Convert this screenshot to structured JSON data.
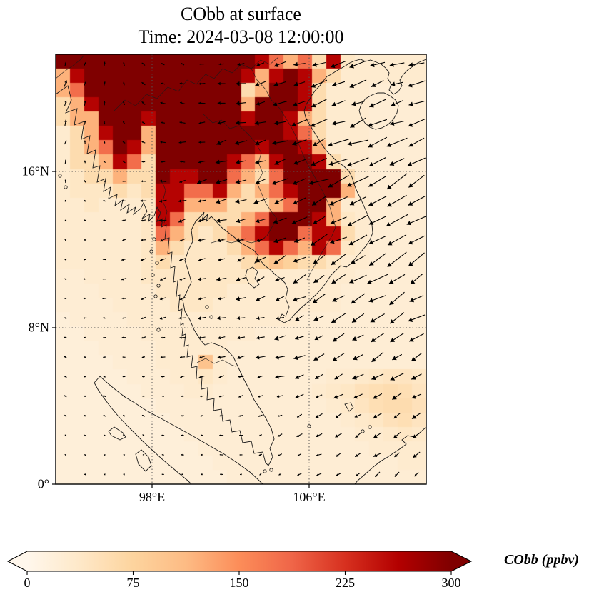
{
  "title": {
    "line1": "CObb at surface",
    "line2": "Time: 2024-03-08 12:00:00"
  },
  "colorbar": {
    "label": "CObb (ppbv)",
    "tick_labels": [
      "0",
      "75",
      "150",
      "225",
      "300"
    ],
    "min": 0,
    "max": 300,
    "extend": "both",
    "colormap_name": "OrRd",
    "colormap_stops": [
      "#fff7ec",
      "#fee8c8",
      "#fdd49e",
      "#fdbb84",
      "#fc8d59",
      "#ef6548",
      "#d7301f",
      "#b30000",
      "#7f0000"
    ]
  },
  "axes": {
    "y_tick_labels": [
      "16°N",
      "8°N",
      "0°"
    ],
    "x_tick_labels": [
      "98°E",
      "106°E"
    ]
  },
  "chart_data": {
    "type": "heatmap",
    "title": "CObb at surface",
    "subtitle": "Time: 2024-03-08 12:00:00",
    "variable": "CObb",
    "units": "ppbv",
    "level": "surface",
    "projection": "lat-lon map, Southeast Asia",
    "lon_range": [
      93.1,
      112.0
    ],
    "lat_range": [
      0.0,
      22.0
    ],
    "x_ticks": [
      {
        "label": "98°E",
        "lon": 98
      },
      {
        "label": "106°E",
        "lon": 106
      }
    ],
    "y_ticks": [
      {
        "label": "16°N",
        "lat": 16
      },
      {
        "label": "8°N",
        "lat": 8
      },
      {
        "label": "0°",
        "lat": 0
      }
    ],
    "grid_on": true,
    "colorbar_ticks": [
      0,
      75,
      150,
      225,
      300
    ],
    "colorbar_range": [
      0,
      300
    ],
    "grid_cols": 26,
    "grid_rows": 30,
    "values_ppbv": [
      [
        310,
        310,
        310,
        310,
        310,
        310,
        310,
        310,
        310,
        310,
        310,
        310,
        310,
        310,
        260,
        180,
        120,
        180,
        60,
        260,
        40,
        30,
        30,
        30,
        30,
        30
      ],
      [
        120,
        260,
        310,
        310,
        310,
        310,
        310,
        310,
        310,
        310,
        310,
        310,
        310,
        260,
        120,
        260,
        310,
        260,
        120,
        60,
        30,
        30,
        30,
        30,
        30,
        30
      ],
      [
        120,
        180,
        310,
        310,
        310,
        310,
        310,
        310,
        310,
        310,
        310,
        310,
        310,
        60,
        120,
        310,
        310,
        260,
        60,
        30,
        30,
        30,
        25,
        25,
        25,
        25
      ],
      [
        60,
        120,
        260,
        310,
        310,
        310,
        310,
        310,
        310,
        310,
        310,
        310,
        310,
        120,
        310,
        310,
        310,
        260,
        60,
        30,
        30,
        30,
        25,
        25,
        25,
        25
      ],
      [
        60,
        120,
        120,
        310,
        310,
        310,
        260,
        310,
        310,
        310,
        310,
        310,
        310,
        260,
        310,
        310,
        260,
        120,
        60,
        30,
        30,
        30,
        25,
        25,
        25,
        25
      ],
      [
        30,
        60,
        120,
        260,
        310,
        310,
        120,
        310,
        310,
        310,
        310,
        310,
        310,
        310,
        310,
        310,
        260,
        180,
        60,
        30,
        30,
        30,
        25,
        25,
        25,
        25
      ],
      [
        30,
        60,
        120,
        180,
        310,
        260,
        120,
        310,
        310,
        310,
        310,
        310,
        310,
        310,
        260,
        310,
        310,
        260,
        120,
        30,
        30,
        30,
        25,
        25,
        25,
        25
      ],
      [
        30,
        60,
        60,
        120,
        260,
        180,
        60,
        310,
        310,
        310,
        310,
        310,
        260,
        180,
        120,
        260,
        310,
        310,
        260,
        60,
        30,
        30,
        25,
        25,
        25,
        25
      ],
      [
        30,
        40,
        60,
        60,
        120,
        60,
        60,
        310,
        260,
        260,
        310,
        310,
        180,
        120,
        60,
        180,
        310,
        310,
        310,
        310,
        60,
        30,
        25,
        25,
        25,
        25
      ],
      [
        30,
        40,
        40,
        40,
        60,
        40,
        60,
        260,
        260,
        180,
        180,
        260,
        120,
        60,
        120,
        180,
        260,
        310,
        310,
        310,
        120,
        30,
        25,
        25,
        25,
        25
      ],
      [
        30,
        30,
        40,
        30,
        30,
        30,
        40,
        260,
        260,
        120,
        120,
        120,
        60,
        60,
        60,
        120,
        180,
        310,
        310,
        120,
        30,
        30,
        25,
        25,
        25,
        25
      ],
      [
        30,
        30,
        30,
        30,
        30,
        30,
        40,
        260,
        180,
        60,
        60,
        60,
        60,
        120,
        180,
        310,
        310,
        310,
        260,
        120,
        40,
        30,
        25,
        25,
        25,
        25
      ],
      [
        30,
        30,
        30,
        30,
        30,
        30,
        40,
        180,
        120,
        60,
        40,
        60,
        120,
        180,
        260,
        310,
        310,
        180,
        260,
        260,
        60,
        30,
        25,
        25,
        25,
        25
      ],
      [
        30,
        30,
        30,
        30,
        30,
        30,
        40,
        120,
        60,
        40,
        40,
        40,
        60,
        120,
        180,
        260,
        180,
        120,
        260,
        180,
        40,
        30,
        25,
        25,
        25,
        25
      ],
      [
        30,
        30,
        30,
        30,
        30,
        30,
        40,
        60,
        40,
        40,
        40,
        40,
        40,
        60,
        80,
        100,
        80,
        60,
        60,
        40,
        30,
        30,
        25,
        25,
        25,
        25
      ],
      [
        25,
        25,
        30,
        30,
        30,
        30,
        40,
        40,
        40,
        40,
        40,
        40,
        40,
        40,
        30,
        30,
        30,
        30,
        30,
        30,
        30,
        25,
        25,
        25,
        25,
        25
      ],
      [
        25,
        25,
        25,
        30,
        30,
        30,
        30,
        40,
        40,
        40,
        40,
        40,
        30,
        30,
        30,
        30,
        30,
        30,
        30,
        30,
        25,
        25,
        25,
        25,
        25,
        25
      ],
      [
        25,
        25,
        25,
        25,
        30,
        30,
        30,
        30,
        40,
        40,
        40,
        30,
        30,
        30,
        30,
        30,
        30,
        30,
        30,
        30,
        25,
        25,
        25,
        25,
        25,
        25
      ],
      [
        20,
        25,
        25,
        25,
        25,
        30,
        30,
        30,
        30,
        30,
        30,
        30,
        30,
        30,
        30,
        30,
        30,
        25,
        25,
        25,
        25,
        25,
        25,
        25,
        25,
        25
      ],
      [
        20,
        20,
        25,
        25,
        25,
        25,
        30,
        30,
        30,
        30,
        30,
        30,
        30,
        30,
        25,
        25,
        25,
        25,
        25,
        25,
        25,
        25,
        25,
        25,
        25,
        25
      ],
      [
        20,
        20,
        20,
        25,
        25,
        25,
        25,
        30,
        30,
        30,
        30,
        30,
        25,
        25,
        25,
        25,
        25,
        25,
        25,
        25,
        25,
        25,
        25,
        25,
        25,
        25
      ],
      [
        20,
        20,
        20,
        20,
        25,
        25,
        25,
        30,
        30,
        30,
        100,
        30,
        25,
        25,
        25,
        25,
        25,
        25,
        25,
        25,
        25,
        25,
        25,
        25,
        25,
        25
      ],
      [
        20,
        20,
        20,
        20,
        20,
        25,
        25,
        25,
        30,
        30,
        40,
        30,
        25,
        25,
        25,
        25,
        25,
        25,
        25,
        30,
        30,
        35,
        40,
        45,
        45,
        40
      ],
      [
        20,
        20,
        20,
        20,
        20,
        20,
        25,
        25,
        25,
        30,
        30,
        25,
        25,
        25,
        25,
        25,
        25,
        25,
        30,
        35,
        40,
        50,
        55,
        60,
        55,
        45
      ],
      [
        20,
        20,
        20,
        20,
        20,
        20,
        20,
        25,
        25,
        25,
        25,
        25,
        25,
        25,
        25,
        25,
        25,
        25,
        25,
        30,
        35,
        45,
        55,
        60,
        60,
        50
      ],
      [
        20,
        20,
        20,
        20,
        20,
        20,
        20,
        20,
        25,
        25,
        25,
        25,
        25,
        25,
        25,
        25,
        25,
        25,
        25,
        25,
        30,
        35,
        40,
        50,
        55,
        45
      ],
      [
        20,
        20,
        20,
        20,
        20,
        20,
        20,
        20,
        20,
        25,
        25,
        25,
        25,
        25,
        25,
        25,
        25,
        25,
        25,
        25,
        25,
        30,
        30,
        35,
        40,
        35
      ],
      [
        20,
        20,
        20,
        20,
        20,
        20,
        20,
        20,
        20,
        20,
        25,
        25,
        25,
        25,
        25,
        25,
        25,
        25,
        25,
        25,
        25,
        25,
        30,
        30,
        30,
        30
      ],
      [
        20,
        20,
        20,
        20,
        20,
        20,
        20,
        20,
        20,
        20,
        20,
        25,
        25,
        25,
        25,
        25,
        25,
        25,
        25,
        25,
        25,
        25,
        25,
        25,
        30,
        30
      ],
      [
        20,
        20,
        20,
        20,
        20,
        20,
        20,
        20,
        20,
        20,
        20,
        20,
        25,
        25,
        25,
        25,
        25,
        25,
        25,
        25,
        25,
        25,
        25,
        25,
        25,
        25
      ]
    ],
    "wind_overlay": {
      "type": "quiver",
      "description": "surface wind vectors, northeasterly monsoon flow over South China Sea, weak over Andaman Sea and equator",
      "cols": 10,
      "rows": 11,
      "uv": [
        [
          [
            0.2,
            0.4
          ],
          [
            0.1,
            0.3
          ],
          [
            -0.2,
            0.2
          ],
          [
            -0.3,
            0.1
          ],
          [
            -0.5,
            0.0
          ],
          [
            -0.8,
            -0.2
          ],
          [
            -1.0,
            -0.3
          ],
          [
            -1.2,
            -0.3
          ],
          [
            -1.2,
            -0.4
          ],
          [
            -1.1,
            -0.4
          ]
        ],
        [
          [
            0.2,
            0.5
          ],
          [
            0.0,
            0.3
          ],
          [
            -0.3,
            0.2
          ],
          [
            -0.4,
            0.1
          ],
          [
            -0.6,
            -0.1
          ],
          [
            -0.9,
            -0.2
          ],
          [
            -1.1,
            -0.3
          ],
          [
            -1.3,
            -0.4
          ],
          [
            -1.3,
            -0.5
          ],
          [
            -1.2,
            -0.5
          ]
        ],
        [
          [
            0.1,
            0.4
          ],
          [
            -0.1,
            0.2
          ],
          [
            -0.3,
            0.1
          ],
          [
            -0.5,
            0.0
          ],
          [
            -0.8,
            -0.2
          ],
          [
            -1.0,
            -0.3
          ],
          [
            -1.1,
            -0.4
          ],
          [
            -1.4,
            -0.6
          ],
          [
            -1.5,
            -0.6
          ],
          [
            -1.4,
            -0.6
          ]
        ],
        [
          [
            0.0,
            0.2
          ],
          [
            -0.2,
            0.1
          ],
          [
            -0.4,
            0.0
          ],
          [
            -0.6,
            -0.1
          ],
          [
            -0.8,
            -0.2
          ],
          [
            -1.0,
            -0.3
          ],
          [
            -1.2,
            -0.5
          ],
          [
            -1.5,
            -0.7
          ],
          [
            -1.6,
            -0.8
          ],
          [
            -1.5,
            -0.8
          ]
        ],
        [
          [
            -0.1,
            0.1
          ],
          [
            -0.2,
            0.0
          ],
          [
            -0.4,
            -0.1
          ],
          [
            -0.6,
            -0.2
          ],
          [
            -0.8,
            -0.2
          ],
          [
            -0.9,
            -0.3
          ],
          [
            -1.1,
            -0.5
          ],
          [
            -1.4,
            -0.8
          ],
          [
            -1.6,
            -0.9
          ],
          [
            -1.5,
            -0.9
          ]
        ],
        [
          [
            -0.2,
            0.1
          ],
          [
            -0.3,
            0.0
          ],
          [
            -0.4,
            -0.1
          ],
          [
            -0.6,
            -0.2
          ],
          [
            -0.7,
            -0.2
          ],
          [
            -0.8,
            -0.3
          ],
          [
            -1.0,
            -0.5
          ],
          [
            -1.2,
            -0.7
          ],
          [
            -1.4,
            -0.8
          ],
          [
            -1.4,
            -0.8
          ]
        ],
        [
          [
            -0.2,
            0.0
          ],
          [
            -0.3,
            0.0
          ],
          [
            -0.4,
            -0.1
          ],
          [
            -0.5,
            -0.1
          ],
          [
            -0.7,
            -0.2
          ],
          [
            -0.8,
            -0.2
          ],
          [
            -0.9,
            -0.4
          ],
          [
            -1.1,
            -0.6
          ],
          [
            -1.2,
            -0.7
          ],
          [
            -1.2,
            -0.7
          ]
        ],
        [
          [
            -0.2,
            0.1
          ],
          [
            -0.2,
            0.0
          ],
          [
            -0.3,
            0.0
          ],
          [
            -0.4,
            -0.1
          ],
          [
            -0.6,
            -0.1
          ],
          [
            -0.7,
            -0.2
          ],
          [
            -0.8,
            -0.3
          ],
          [
            -0.9,
            -0.5
          ],
          [
            -1.0,
            -0.6
          ],
          [
            -1.0,
            -0.6
          ]
        ],
        [
          [
            -0.2,
            0.1
          ],
          [
            -0.2,
            0.1
          ],
          [
            -0.2,
            0.0
          ],
          [
            -0.3,
            0.0
          ],
          [
            -0.4,
            -0.1
          ],
          [
            -0.5,
            -0.1
          ],
          [
            -0.6,
            -0.2
          ],
          [
            -0.7,
            -0.4
          ],
          [
            -0.8,
            -0.5
          ],
          [
            -0.8,
            -0.5
          ]
        ],
        [
          [
            -0.1,
            0.1
          ],
          [
            -0.1,
            0.1
          ],
          [
            -0.2,
            0.1
          ],
          [
            -0.2,
            0.0
          ],
          [
            -0.3,
            0.0
          ],
          [
            -0.3,
            -0.1
          ],
          [
            -0.4,
            -0.2
          ],
          [
            -0.5,
            -0.3
          ],
          [
            -0.6,
            -0.4
          ],
          [
            -0.6,
            -0.4
          ]
        ],
        [
          [
            -0.1,
            0.0
          ],
          [
            -0.1,
            0.0
          ],
          [
            -0.1,
            0.0
          ],
          [
            -0.2,
            0.0
          ],
          [
            -0.2,
            0.0
          ],
          [
            -0.2,
            -0.1
          ],
          [
            -0.3,
            -0.1
          ],
          [
            -0.4,
            -0.2
          ],
          [
            -0.4,
            -0.3
          ],
          [
            -0.4,
            -0.3
          ]
        ]
      ]
    }
  }
}
